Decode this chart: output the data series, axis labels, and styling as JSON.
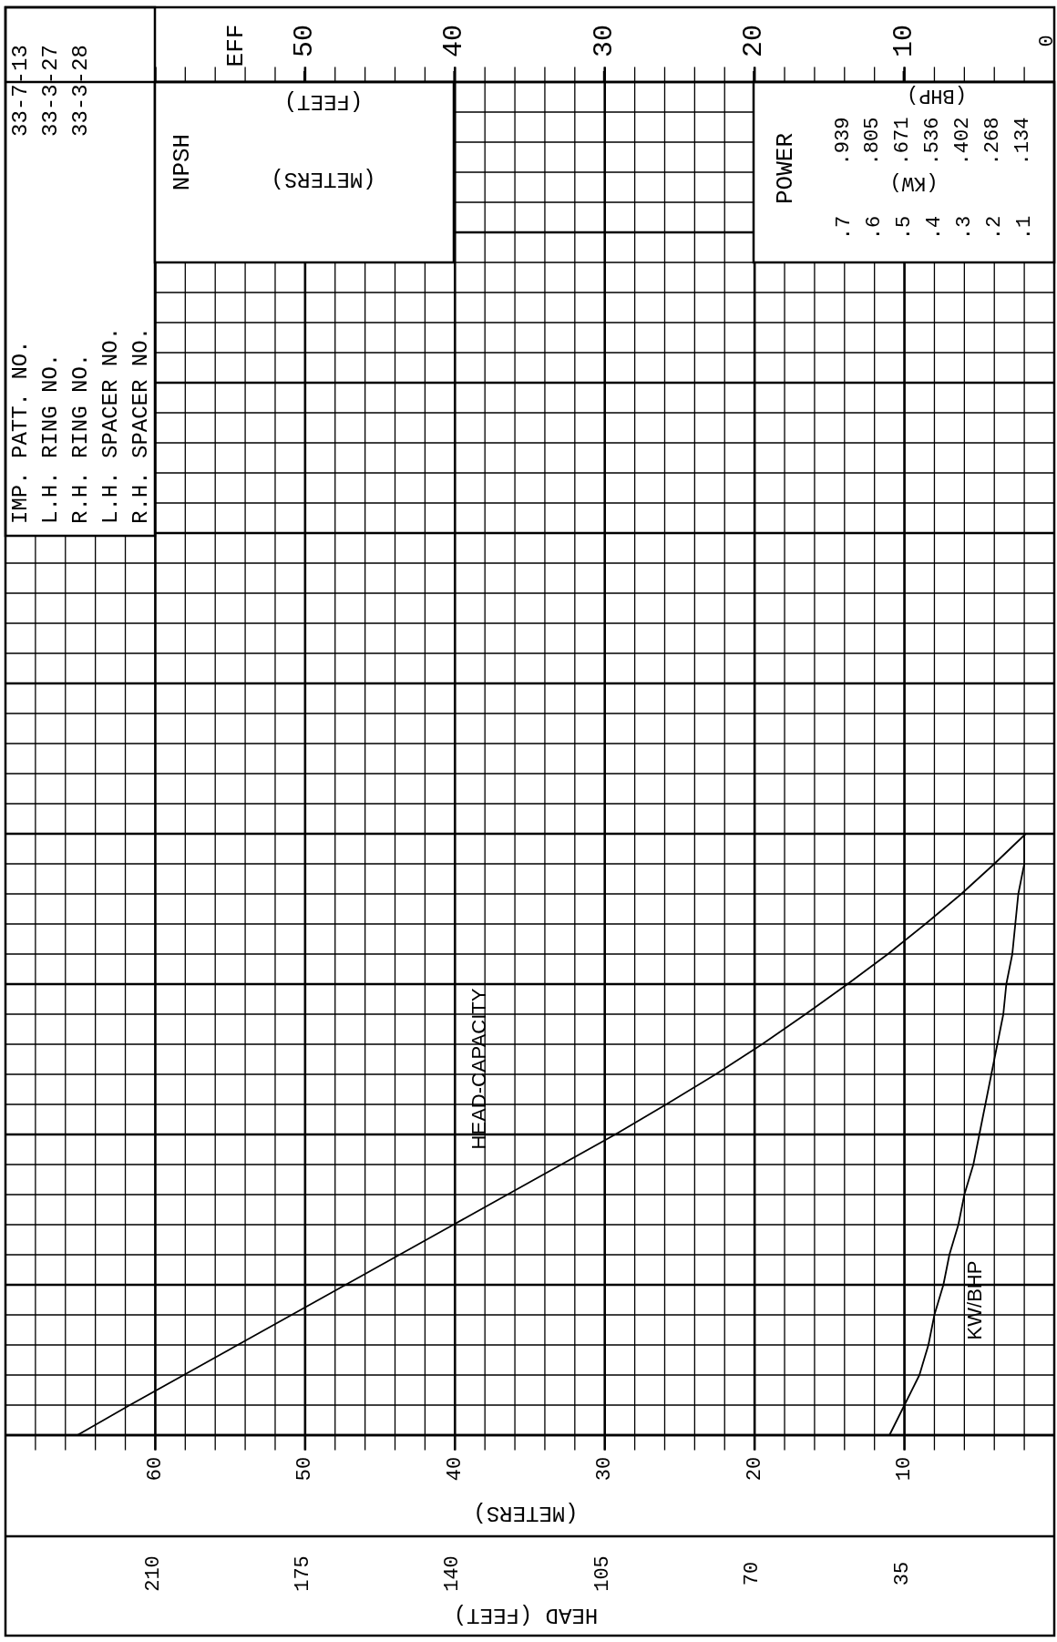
{
  "chart_data": {
    "type": "line",
    "orientation": "horizontal",
    "categories": [
      null,
      null,
      null,
      null,
      null,
      null,
      null,
      null,
      null,
      null,
      null,
      null,
      null,
      null,
      null,
      null,
      null,
      null,
      null,
      null,
      null,
      null,
      null,
      null,
      null,
      null,
      null,
      null,
      null,
      null,
      null,
      null,
      null,
      null,
      null,
      null,
      null,
      null,
      null,
      null,
      null,
      null,
      null,
      null,
      null,
      null
    ],
    "series": [
      {
        "name": "HEAD-CAPACITY",
        "color": "#000000",
        "values": [
          null,
          null,
          null,
          null,
          null,
          null,
          null,
          null,
          null,
          null,
          null,
          null,
          null,
          null,
          null,
          null,
          null,
          null,
          null,
          null,
          null,
          null,
          null,
          null,
          null,
          1.9,
          4.0,
          6.2,
          8.6,
          11.1,
          13.8,
          16.6,
          19.5,
          22.6,
          25.9,
          29.3,
          32.9,
          36.5,
          40.1,
          43.7,
          47.3,
          50.9,
          54.5,
          58.1,
          61.7,
          65.2
        ]
      },
      {
        "name": "KW/BHP",
        "color": "#000000",
        "axis": "x2",
        "values": [
          null,
          null,
          null,
          null,
          null,
          null,
          null,
          null,
          null,
          null,
          null,
          null,
          null,
          null,
          null,
          null,
          null,
          null,
          null,
          null,
          null,
          null,
          null,
          null,
          null,
          0.1,
          0.1,
          0.12,
          0.13,
          0.14,
          0.16,
          0.17,
          0.19,
          0.21,
          0.23,
          0.25,
          0.27,
          0.3,
          0.32,
          0.35,
          0.37,
          0.4,
          0.42,
          0.45,
          0.5,
          0.55
        ]
      }
    ],
    "xlabel": "(METERS)",
    "xlim": [
      70,
      0
    ],
    "xticks": [
      {
        "value": 70,
        "label": null
      },
      {
        "value": 68,
        "label": null
      },
      {
        "value": 66,
        "label": null
      },
      {
        "value": 64,
        "label": null
      },
      {
        "value": 62,
        "label": null
      },
      60,
      {
        "value": 58,
        "label": null
      },
      {
        "value": 56,
        "label": null
      },
      {
        "value": 54,
        "label": null
      },
      {
        "value": 52,
        "label": null
      },
      50,
      {
        "value": 48,
        "label": null
      },
      {
        "value": 46,
        "label": null
      },
      {
        "value": 44,
        "label": null
      },
      {
        "value": 42,
        "label": null
      },
      40,
      {
        "value": 38,
        "label": null
      },
      {
        "value": 36,
        "label": null
      },
      {
        "value": 34,
        "label": null
      },
      {
        "value": 32,
        "label": null
      },
      30,
      {
        "value": 28,
        "label": null
      },
      {
        "value": 26,
        "label": null
      },
      {
        "value": 24,
        "label": null
      },
      {
        "value": 22,
        "label": null
      },
      20,
      {
        "value": 18,
        "label": null
      },
      {
        "value": 16,
        "label": null
      },
      {
        "value": 14,
        "label": null
      },
      {
        "value": 12,
        "label": null
      },
      10,
      {
        "value": 8,
        "label": null
      },
      {
        "value": 6,
        "label": null
      },
      {
        "value": 4,
        "label": null
      },
      {
        "value": 2,
        "label": null
      },
      {
        "value": 0,
        "label": null
      }
    ],
    "x2label": "(KW)",
    "x2lim": [
      3.5,
      0
    ],
    "x2ticks": [
      {
        "value": 0.7,
        "label": ".7"
      },
      {
        "value": 0.6,
        "label": ".6"
      },
      {
        "value": 0.5,
        "label": ".5"
      },
      {
        "value": 0.4,
        "label": ".4"
      },
      {
        "value": 0.3,
        "label": ".3"
      },
      {
        "value": 0.2,
        "label": ".2"
      },
      {
        "value": 0.1,
        "label": ".1"
      }
    ],
    "annotations": [
      "IMP. PATT. NO.",
      "L.H. RING NO.",
      "R.H. RING NO.",
      "L.H. SPACER NO.",
      "R.H. SPACER NO.",
      "33-7-13",
      "33-3-27",
      "33-3-28",
      "NPSH",
      "(FEET)",
      "(METERS)",
      "POWER",
      "EFF",
      "50",
      "40",
      "30",
      "20",
      "10",
      "0",
      "HEAD (FEET)",
      "210",
      "175",
      "140",
      "105",
      "70",
      "35",
      "(BHP)",
      ".939",
      ".805",
      ".671",
      ".536",
      ".402",
      ".268",
      ".134"
    ],
    "grid": true,
    "marker": "none",
    "line_style": "solid"
  }
}
